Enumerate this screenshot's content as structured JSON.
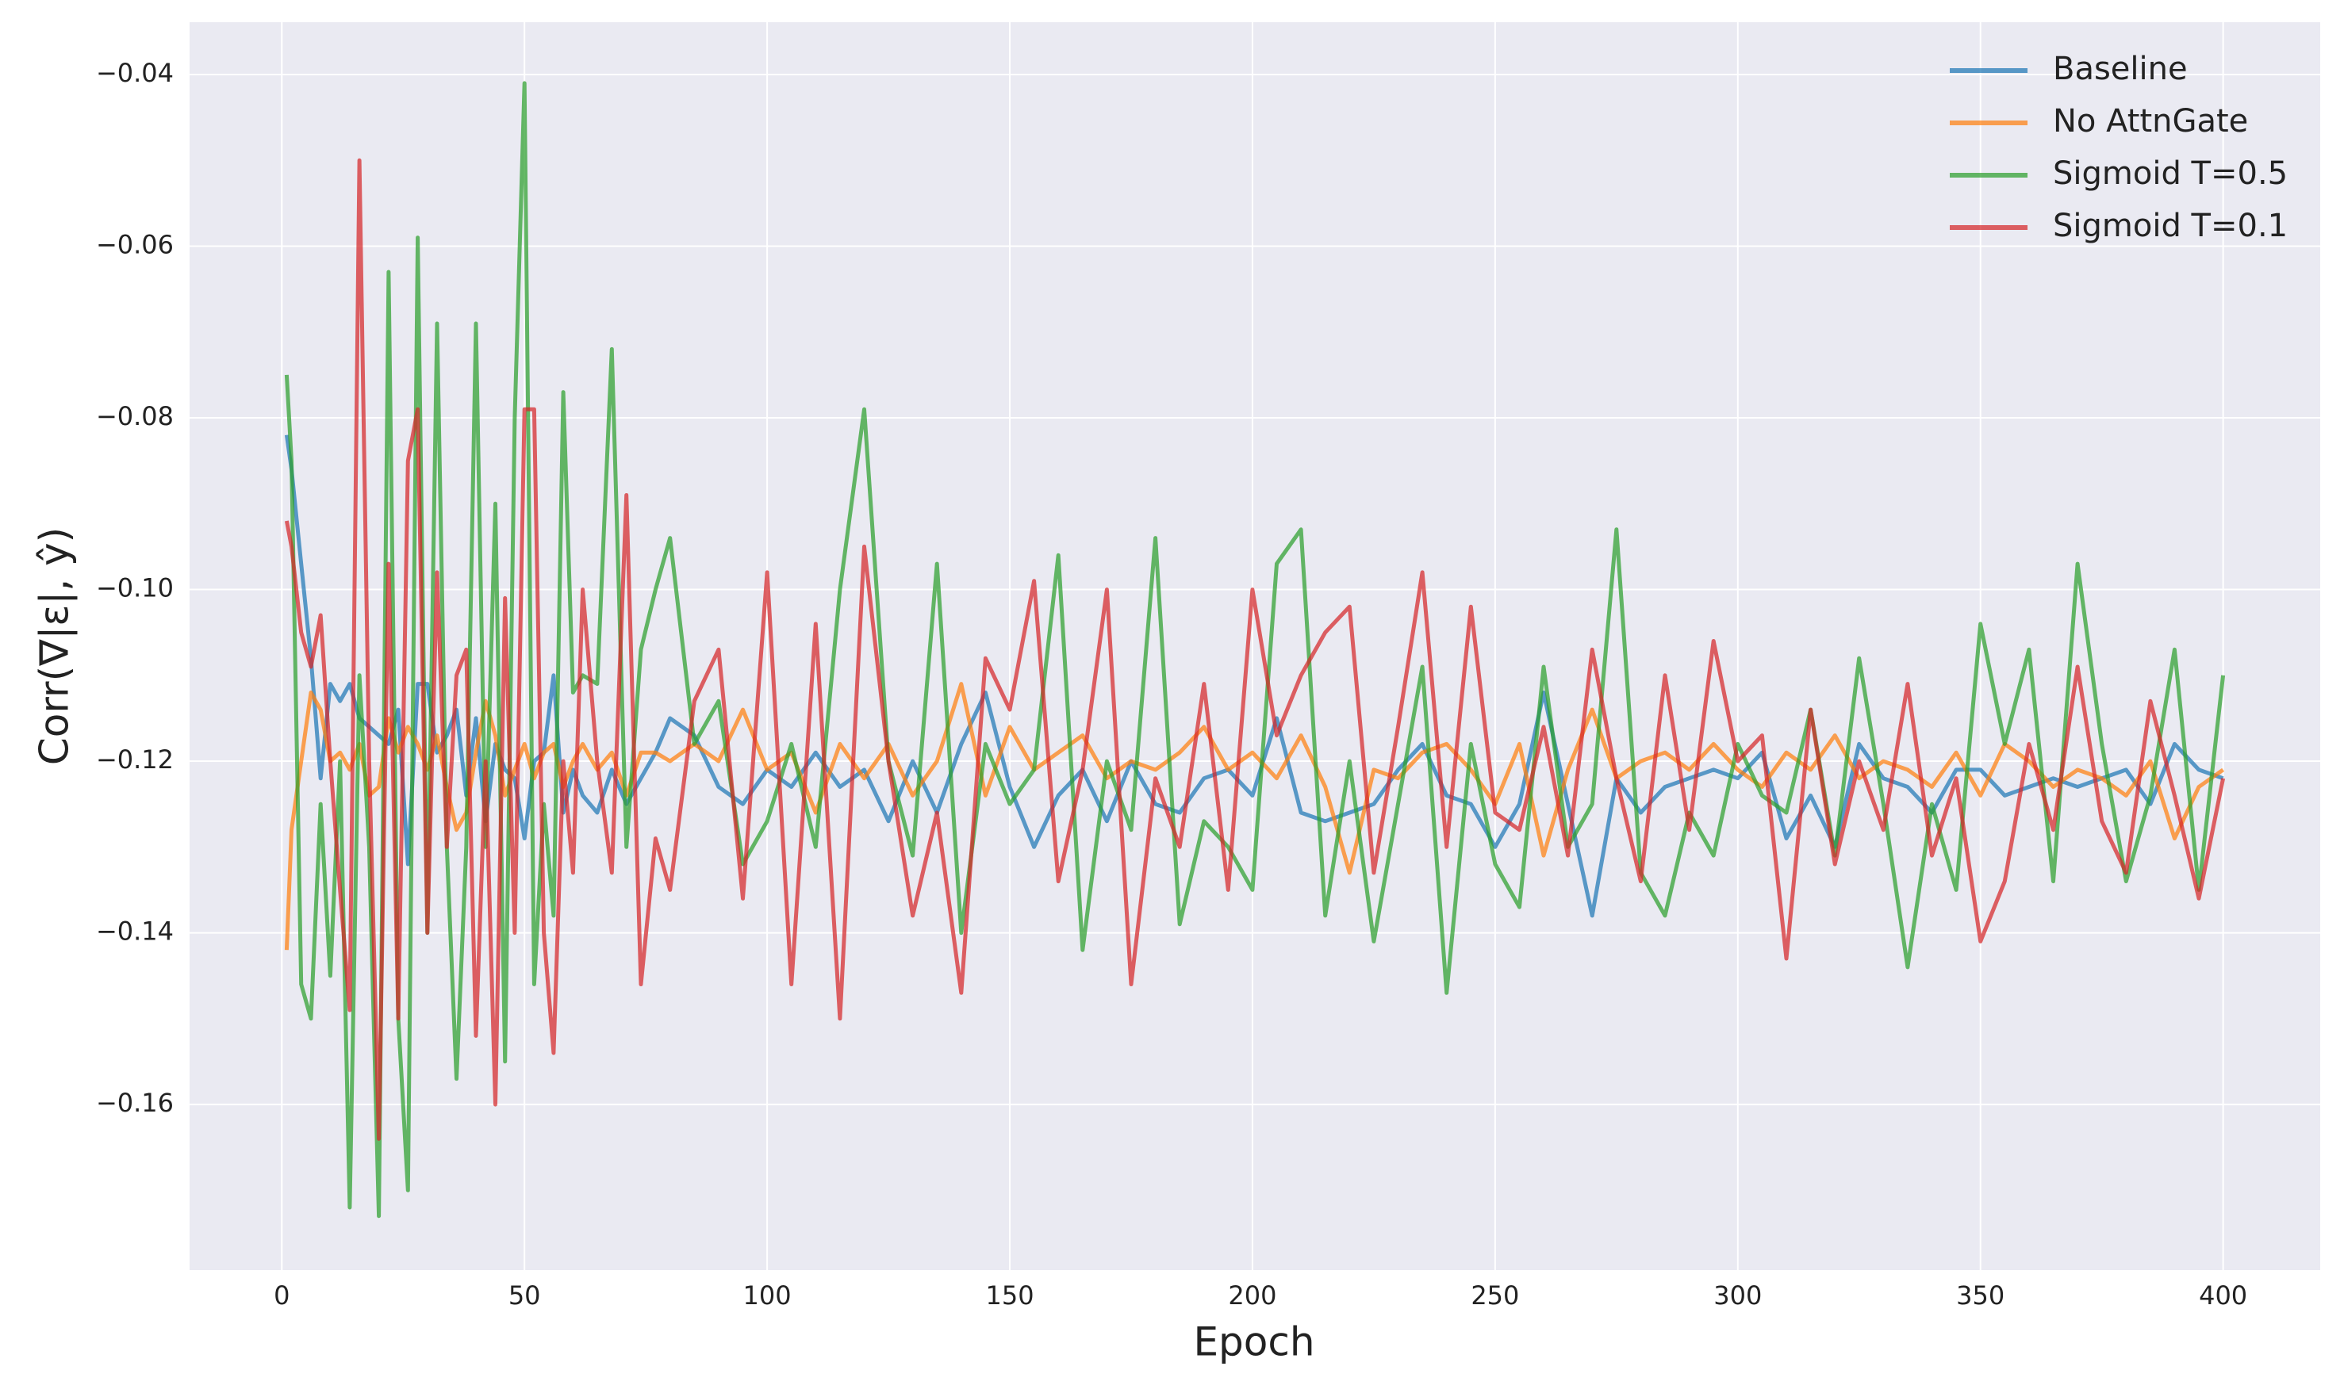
{
  "chart_data": {
    "type": "line",
    "xlabel": "Epoch",
    "ylabel": "Corr(∇|ε|, ŷ)",
    "xlim": [
      -19,
      420
    ],
    "ylim": [
      -0.1793,
      -0.0339
    ],
    "xticks": [
      0,
      50,
      100,
      150,
      200,
      250,
      300,
      350,
      400
    ],
    "yticks": [
      {
        "value": -0.16,
        "label": "−0.16"
      },
      {
        "value": -0.14,
        "label": "−0.14"
      },
      {
        "value": -0.12,
        "label": "−0.12"
      },
      {
        "value": -0.1,
        "label": "−0.10"
      },
      {
        "value": -0.08,
        "label": "−0.08"
      },
      {
        "value": -0.06,
        "label": "−0.06"
      },
      {
        "value": -0.04,
        "label": "−0.04"
      }
    ],
    "grid": true,
    "legend": "upper right",
    "x": [
      1,
      2,
      4,
      6,
      8,
      10,
      12,
      14,
      16,
      18,
      20,
      22,
      24,
      26,
      28,
      30,
      32,
      34,
      36,
      38,
      40,
      42,
      44,
      46,
      48,
      50,
      52,
      54,
      56,
      58,
      60,
      62,
      65,
      68,
      71,
      74,
      77,
      80,
      85,
      90,
      95,
      100,
      105,
      110,
      115,
      120,
      125,
      130,
      135,
      140,
      145,
      150,
      155,
      160,
      165,
      170,
      175,
      180,
      185,
      190,
      195,
      200,
      205,
      210,
      215,
      220,
      225,
      230,
      235,
      240,
      245,
      250,
      255,
      260,
      265,
      270,
      275,
      280,
      285,
      290,
      295,
      300,
      305,
      310,
      315,
      320,
      325,
      330,
      335,
      340,
      345,
      350,
      355,
      360,
      365,
      370,
      375,
      380,
      385,
      390,
      395,
      400
    ],
    "series": [
      {
        "name": "Baseline",
        "color": "#1f77b4",
        "values": [
          -0.082,
          -0.086,
          -0.097,
          -0.108,
          -0.122,
          -0.111,
          -0.113,
          -0.111,
          -0.115,
          -0.116,
          -0.117,
          -0.118,
          -0.114,
          -0.132,
          -0.111,
          -0.111,
          -0.119,
          -0.117,
          -0.114,
          -0.124,
          -0.115,
          -0.127,
          -0.118,
          -0.121,
          -0.122,
          -0.129,
          -0.12,
          -0.119,
          -0.11,
          -0.126,
          -0.121,
          -0.124,
          -0.126,
          -0.121,
          -0.125,
          -0.122,
          -0.119,
          -0.115,
          -0.117,
          -0.123,
          -0.125,
          -0.121,
          -0.123,
          -0.119,
          -0.123,
          -0.121,
          -0.127,
          -0.12,
          -0.126,
          -0.118,
          -0.112,
          -0.123,
          -0.13,
          -0.124,
          -0.121,
          -0.127,
          -0.12,
          -0.125,
          -0.126,
          -0.122,
          -0.121,
          -0.124,
          -0.115,
          -0.126,
          -0.127,
          -0.126,
          -0.125,
          -0.121,
          -0.118,
          -0.124,
          -0.125,
          -0.13,
          -0.125,
          -0.112,
          -0.125,
          -0.138,
          -0.122,
          -0.126,
          -0.123,
          -0.122,
          -0.121,
          -0.122,
          -0.119,
          -0.129,
          -0.124,
          -0.13,
          -0.118,
          -0.122,
          -0.123,
          -0.126,
          -0.121,
          -0.121,
          -0.124,
          -0.123,
          -0.122,
          -0.123,
          -0.122,
          -0.121,
          -0.125,
          -0.118,
          -0.121,
          -0.122
        ]
      },
      {
        "name": "No AttnGate",
        "color": "#ff7f0e",
        "values": [
          -0.142,
          -0.128,
          -0.12,
          -0.112,
          -0.114,
          -0.12,
          -0.119,
          -0.121,
          -0.118,
          -0.124,
          -0.123,
          -0.115,
          -0.119,
          -0.116,
          -0.118,
          -0.121,
          -0.117,
          -0.123,
          -0.128,
          -0.126,
          -0.119,
          -0.113,
          -0.117,
          -0.124,
          -0.121,
          -0.118,
          -0.122,
          -0.119,
          -0.118,
          -0.123,
          -0.12,
          -0.118,
          -0.121,
          -0.119,
          -0.124,
          -0.119,
          -0.119,
          -0.12,
          -0.118,
          -0.12,
          -0.114,
          -0.121,
          -0.119,
          -0.126,
          -0.118,
          -0.122,
          -0.118,
          -0.124,
          -0.12,
          -0.111,
          -0.124,
          -0.116,
          -0.121,
          -0.119,
          -0.117,
          -0.122,
          -0.12,
          -0.121,
          -0.119,
          -0.116,
          -0.121,
          -0.119,
          -0.122,
          -0.117,
          -0.123,
          -0.133,
          -0.121,
          -0.122,
          -0.119,
          -0.118,
          -0.121,
          -0.125,
          -0.118,
          -0.131,
          -0.121,
          -0.114,
          -0.122,
          -0.12,
          -0.119,
          -0.121,
          -0.118,
          -0.121,
          -0.123,
          -0.119,
          -0.121,
          -0.117,
          -0.122,
          -0.12,
          -0.121,
          -0.123,
          -0.119,
          -0.124,
          -0.118,
          -0.12,
          -0.123,
          -0.121,
          -0.122,
          -0.124,
          -0.12,
          -0.129,
          -0.123,
          -0.121
        ]
      },
      {
        "name": "Sigmoid T=0.5",
        "color": "#2ca02c",
        "values": [
          -0.075,
          -0.085,
          -0.146,
          -0.15,
          -0.125,
          -0.145,
          -0.12,
          -0.172,
          -0.11,
          -0.13,
          -0.173,
          -0.063,
          -0.15,
          -0.17,
          -0.059,
          -0.14,
          -0.069,
          -0.13,
          -0.157,
          -0.13,
          -0.069,
          -0.13,
          -0.09,
          -0.155,
          -0.08,
          -0.041,
          -0.146,
          -0.125,
          -0.138,
          -0.077,
          -0.112,
          -0.11,
          -0.111,
          -0.072,
          -0.13,
          -0.107,
          -0.1,
          -0.094,
          -0.118,
          -0.113,
          -0.132,
          -0.127,
          -0.118,
          -0.13,
          -0.1,
          -0.079,
          -0.12,
          -0.131,
          -0.097,
          -0.14,
          -0.118,
          -0.125,
          -0.121,
          -0.096,
          -0.142,
          -0.12,
          -0.128,
          -0.094,
          -0.139,
          -0.127,
          -0.13,
          -0.135,
          -0.097,
          -0.093,
          -0.138,
          -0.12,
          -0.141,
          -0.125,
          -0.109,
          -0.147,
          -0.118,
          -0.132,
          -0.137,
          -0.109,
          -0.13,
          -0.125,
          -0.093,
          -0.133,
          -0.138,
          -0.126,
          -0.131,
          -0.118,
          -0.124,
          -0.126,
          -0.114,
          -0.131,
          -0.108,
          -0.125,
          -0.144,
          -0.125,
          -0.135,
          -0.104,
          -0.118,
          -0.107,
          -0.134,
          -0.097,
          -0.118,
          -0.134,
          -0.124,
          -0.107,
          -0.135,
          -0.11
        ]
      },
      {
        "name": "Sigmoid T=0.1",
        "color": "#d62728",
        "values": [
          -0.092,
          -0.095,
          -0.105,
          -0.109,
          -0.103,
          -0.12,
          -0.135,
          -0.149,
          -0.05,
          -0.12,
          -0.164,
          -0.097,
          -0.15,
          -0.085,
          -0.079,
          -0.14,
          -0.098,
          -0.13,
          -0.11,
          -0.107,
          -0.152,
          -0.12,
          -0.16,
          -0.101,
          -0.14,
          -0.079,
          -0.079,
          -0.14,
          -0.154,
          -0.12,
          -0.133,
          -0.1,
          -0.12,
          -0.133,
          -0.089,
          -0.146,
          -0.129,
          -0.135,
          -0.113,
          -0.107,
          -0.136,
          -0.098,
          -0.146,
          -0.104,
          -0.15,
          -0.095,
          -0.12,
          -0.138,
          -0.126,
          -0.147,
          -0.108,
          -0.114,
          -0.099,
          -0.134,
          -0.121,
          -0.1,
          -0.146,
          -0.122,
          -0.13,
          -0.111,
          -0.135,
          -0.1,
          -0.117,
          -0.11,
          -0.105,
          -0.102,
          -0.133,
          -0.116,
          -0.098,
          -0.13,
          -0.102,
          -0.126,
          -0.128,
          -0.116,
          -0.131,
          -0.107,
          -0.122,
          -0.134,
          -0.11,
          -0.128,
          -0.106,
          -0.12,
          -0.117,
          -0.143,
          -0.114,
          -0.132,
          -0.12,
          -0.128,
          -0.111,
          -0.131,
          -0.122,
          -0.141,
          -0.134,
          -0.118,
          -0.128,
          -0.109,
          -0.127,
          -0.133,
          -0.113,
          -0.124,
          -0.136,
          -0.122
        ]
      }
    ]
  }
}
